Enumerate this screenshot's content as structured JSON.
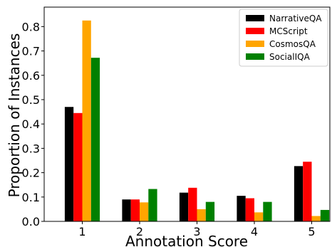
{
  "chart_data": {
    "type": "bar",
    "xlabel": "Annotation Score",
    "ylabel": "Proportion of Instances",
    "categories": [
      "1",
      "2",
      "3",
      "4",
      "5"
    ],
    "ylim": [
      0,
      0.88
    ],
    "yticks": [
      "0.0",
      "0.1",
      "0.2",
      "0.3",
      "0.4",
      "0.5",
      "0.6",
      "0.7",
      "0.8"
    ],
    "legend_position": "top-right",
    "grid": false,
    "series": [
      {
        "name": "NarrativeQA",
        "color": "#000000",
        "values": [
          0.47,
          0.09,
          0.118,
          0.105,
          0.227
        ]
      },
      {
        "name": "MCScript",
        "color": "#ff0000",
        "values": [
          0.445,
          0.09,
          0.138,
          0.095,
          0.245
        ]
      },
      {
        "name": "CosmosQA",
        "color": "#ffa500",
        "values": [
          0.825,
          0.078,
          0.05,
          0.037,
          0.022
        ]
      },
      {
        "name": "SocialIQA",
        "color": "#008000",
        "values": [
          0.672,
          0.133,
          0.08,
          0.08,
          0.047
        ]
      }
    ]
  }
}
